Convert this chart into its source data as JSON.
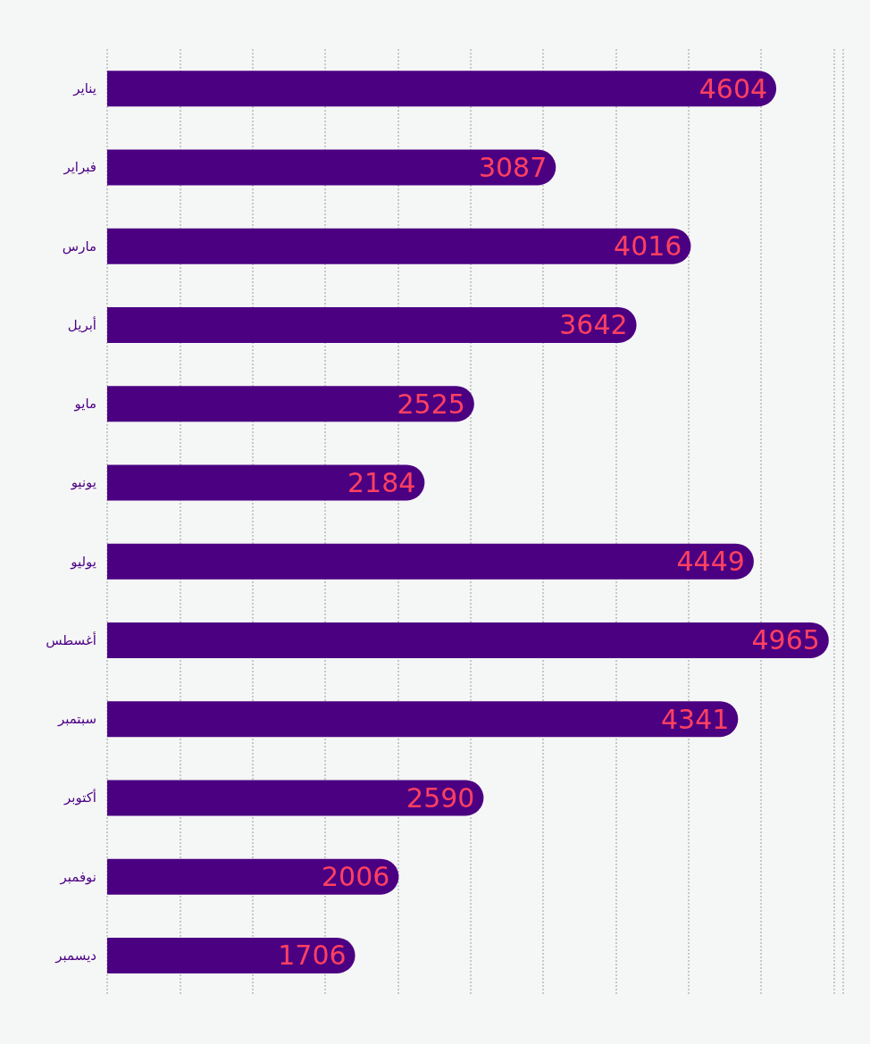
{
  "chart_data": {
    "type": "bar",
    "orientation": "horizontal",
    "categories": [
      "يناير",
      "فبراير",
      "مارس",
      "أبريل",
      "مايو",
      "يونيو",
      "يوليو",
      "أغسطس",
      "سبتمبر",
      "أكتوبر",
      "نوفمبر",
      "ديسمبر"
    ],
    "values": [
      4604,
      3087,
      4016,
      3642,
      2525,
      2184,
      4449,
      4965,
      4341,
      2590,
      2006,
      1706
    ],
    "color": "#4b0082",
    "data_labels": true,
    "grid": "x",
    "tick_labels": "y"
  }
}
